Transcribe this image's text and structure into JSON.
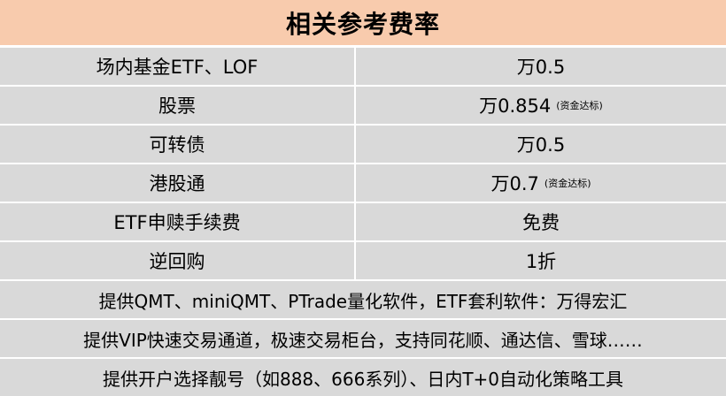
{
  "title": "相关参考费率",
  "rows": [
    {
      "name": "场内基金ETF、LOF",
      "rate": "万0.5",
      "note": ""
    },
    {
      "name": "股票",
      "rate": "万0.854",
      "note": "(资金达标)"
    },
    {
      "name": "可转债",
      "rate": "万0.5",
      "note": ""
    },
    {
      "name": "港股通",
      "rate": "万0.7",
      "note": "(资金达标)"
    },
    {
      "name": "ETF申赎手续费",
      "rate": "免费",
      "note": ""
    },
    {
      "name": "逆回购",
      "rate": "1折",
      "note": ""
    }
  ],
  "notes": [
    "提供QMT、miniQMT、PTrade量化软件，ETF套利软件：万得宏汇",
    "提供VIP快速交易通道，极速交易柜台，支持同花顺、通达信、雪球……",
    "提供开户选择靓号（如888、666系列）、日内T+0自动化策略工具"
  ],
  "colors": {
    "header_bg": "#f8cbad",
    "row_bg": "#d9d9d9"
  }
}
